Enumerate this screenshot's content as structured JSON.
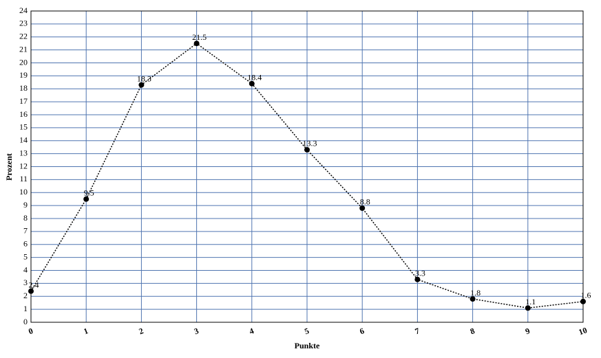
{
  "chart_data": {
    "type": "line",
    "xlabel": "Punkte",
    "ylabel": "Prozent",
    "x": [
      0,
      1,
      2,
      3,
      4,
      5,
      6,
      7,
      8,
      9,
      10
    ],
    "series": [
      {
        "color": "#000000",
        "values": [
          2.4,
          9.5,
          18.3,
          21.5,
          18.4,
          13.3,
          8.8,
          3.3,
          1.8,
          1.1,
          1.6
        ]
      }
    ],
    "xlim": [
      0,
      10
    ],
    "xticks": [
      0,
      1,
      2,
      3,
      4,
      5,
      6,
      7,
      8,
      9,
      10
    ],
    "ylim": [
      0,
      24
    ],
    "yticks": [
      0,
      1,
      2,
      3,
      4,
      5,
      6,
      7,
      8,
      9,
      10,
      11,
      12,
      13,
      14,
      15,
      16,
      17,
      18,
      19,
      20,
      21,
      22,
      23,
      24
    ],
    "grid": true,
    "grid_color": "#4f74b0"
  }
}
